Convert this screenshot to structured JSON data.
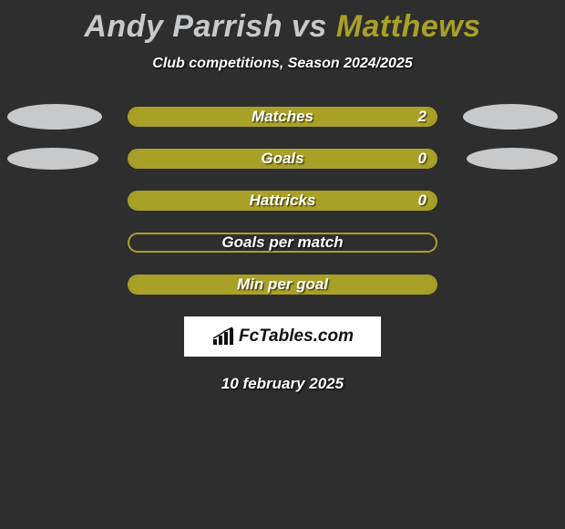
{
  "title": {
    "player1": "Andy Parrish",
    "vs": " vs ",
    "player2": "Matthews",
    "player1_color": "#c7c9cb",
    "player2_color": "#a9a028"
  },
  "subtitle": "Club competitions, Season 2024/2025",
  "background_color": "#2e2e2e",
  "bar": {
    "fill_color": "#a9a028",
    "border_color": "#a9a028",
    "track_width": 340,
    "height": 22,
    "radius": 11
  },
  "ellipse": {
    "left_color": "#c7c9cb",
    "right_color": "#c7c9cb"
  },
  "rows": [
    {
      "label": "Matches",
      "left_value": "2",
      "fill_pct": 100,
      "show_left_ellipse": true,
      "show_right_ellipse": true,
      "ellipse_small": false
    },
    {
      "label": "Goals",
      "left_value": "0",
      "fill_pct": 100,
      "show_left_ellipse": true,
      "show_right_ellipse": true,
      "ellipse_small": true
    },
    {
      "label": "Hattricks",
      "left_value": "0",
      "fill_pct": 100,
      "show_left_ellipse": false,
      "show_right_ellipse": false,
      "ellipse_small": false
    },
    {
      "label": "Goals per match",
      "left_value": "",
      "fill_pct": 0,
      "show_left_ellipse": false,
      "show_right_ellipse": false,
      "ellipse_small": false
    },
    {
      "label": "Min per goal",
      "left_value": "",
      "fill_pct": 100,
      "show_left_ellipse": false,
      "show_right_ellipse": false,
      "ellipse_small": false
    }
  ],
  "logo": {
    "text": "FcTables.com",
    "text_color": "#111111",
    "box_bg": "#ffffff"
  },
  "date": "10 february 2025"
}
